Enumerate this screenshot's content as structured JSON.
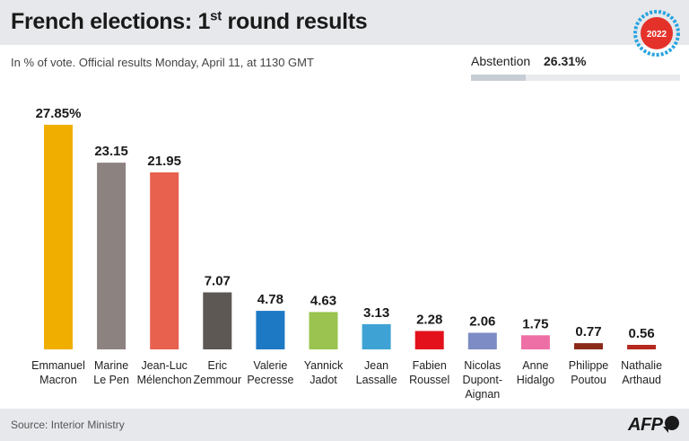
{
  "header": {
    "title_main": "French elections: 1",
    "title_sup": "st",
    "title_end": " round results",
    "badge_text": "2022",
    "badge_color": "#e4322b",
    "badge_ring_color": "#27a3e0"
  },
  "subtitle": "In % of vote. Official results Monday, April 11, at 1130 GMT",
  "abstention": {
    "label": "Abstention",
    "value_text": "26.31%",
    "value": 26.31,
    "max": 100
  },
  "footer": {
    "source": "Source: Interior Ministry",
    "logo": "AFP"
  },
  "chart_data": {
    "type": "bar",
    "ylim": [
      0,
      30
    ],
    "title": "French elections: 1st round results",
    "xlabel": "",
    "ylabel": "",
    "grid": false,
    "bars": [
      {
        "label": [
          "Emmanuel",
          "Macron"
        ],
        "value": 27.85,
        "text": "27.85%",
        "color": "#f0ae00"
      },
      {
        "label": [
          "Marine",
          "Le Pen"
        ],
        "value": 23.15,
        "text": "23.15",
        "color": "#8c8280"
      },
      {
        "label": [
          "Jean-Luc",
          "Mélenchon"
        ],
        "value": 21.95,
        "text": "21.95",
        "color": "#e8604e"
      },
      {
        "label": [
          "Eric",
          "Zemmour"
        ],
        "value": 7.07,
        "text": "7.07",
        "color": "#5e5854"
      },
      {
        "label": [
          "Valerie",
          "Pecresse"
        ],
        "value": 4.78,
        "text": "4.78",
        "color": "#1e79c4"
      },
      {
        "label": [
          "Yannick",
          "Jadot"
        ],
        "value": 4.63,
        "text": "4.63",
        "color": "#9ac44f"
      },
      {
        "label": [
          "Jean",
          "Lassalle"
        ],
        "value": 3.13,
        "text": "3.13",
        "color": "#3ea3d4"
      },
      {
        "label": [
          "Fabien",
          "Roussel"
        ],
        "value": 2.28,
        "text": "2.28",
        "color": "#e3111b"
      },
      {
        "label": [
          "Nicolas",
          "Dupont-",
          "Aignan"
        ],
        "value": 2.06,
        "text": "2.06",
        "color": "#7d8cc4"
      },
      {
        "label": [
          "Anne",
          "Hidalgo"
        ],
        "value": 1.75,
        "text": "1.75",
        "color": "#ee6fa5"
      },
      {
        "label": [
          "Philippe",
          "Poutou"
        ],
        "value": 0.77,
        "text": "0.77",
        "color": "#8c2a1a"
      },
      {
        "label": [
          "Nathalie",
          "Arthaud"
        ],
        "value": 0.56,
        "text": "0.56",
        "color": "#b5281d"
      }
    ]
  }
}
